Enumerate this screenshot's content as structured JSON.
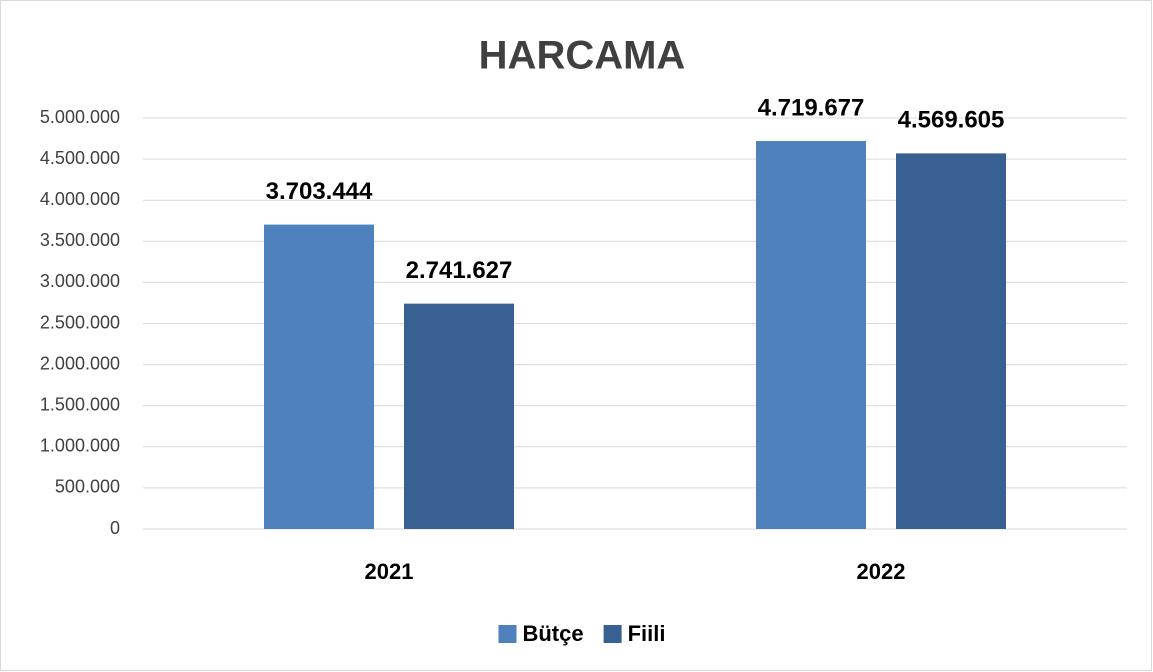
{
  "chart_data": {
    "type": "bar",
    "title": "HARCAMA",
    "categories": [
      "2021",
      "2022"
    ],
    "series": [
      {
        "name": "Bütçe",
        "color": "#4f81bd",
        "values": [
          3703444,
          4719677
        ],
        "value_labels": [
          "3.703.444",
          "4.719.677"
        ]
      },
      {
        "name": "Fiili",
        "color": "#386093",
        "values": [
          2741627,
          4569605
        ],
        "value_labels": [
          "2.741.627",
          "4.569.605"
        ]
      }
    ],
    "ylim": [
      0,
      5000000
    ],
    "yticks": [
      0,
      {
        "value": 500000,
        "label": "500.000"
      },
      {
        "value": 1000000,
        "label": "1.000.000"
      },
      {
        "value": 1500000,
        "label": "1.500.000"
      },
      {
        "value": 2000000,
        "label": "2.000.000"
      },
      {
        "value": 2500000,
        "label": "2.500.000"
      },
      {
        "value": 3000000,
        "label": "3.000.000"
      },
      {
        "value": 3500000,
        "label": "3.500.000"
      },
      {
        "value": 4000000,
        "label": "4.000.000"
      },
      {
        "value": 4500000,
        "label": "4.500.000"
      },
      {
        "value": 5000000,
        "label": "5.000.000"
      }
    ],
    "grid": true,
    "legend": "bottom"
  }
}
